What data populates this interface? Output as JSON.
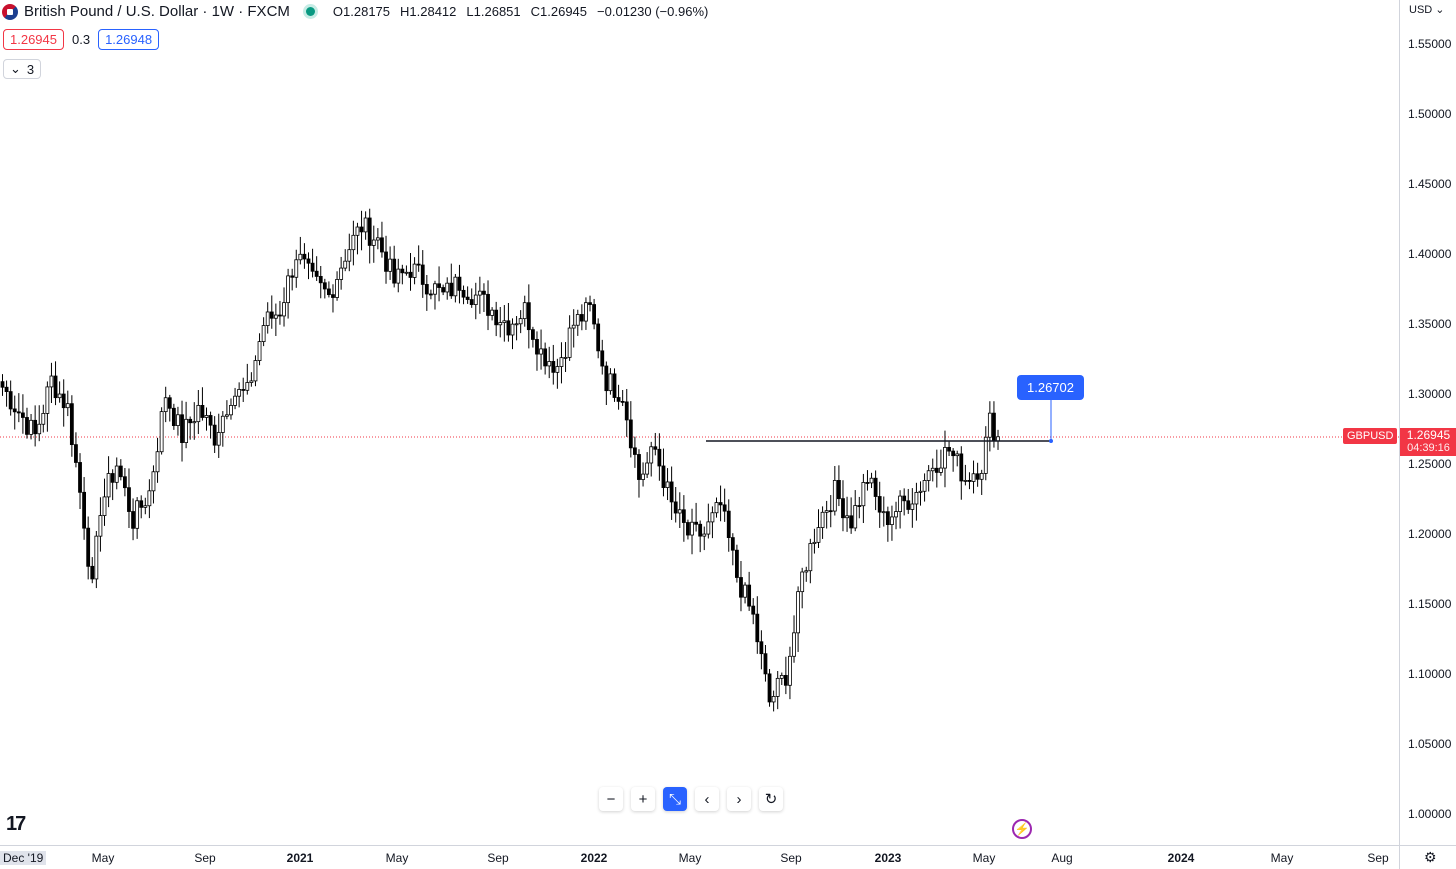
{
  "header": {
    "title": "British Pound / U.S. Dollar · 1W · FXCM",
    "ohlc": {
      "open": "O1.28175",
      "high": "H1.28412",
      "low": "L1.26851",
      "close": "C1.26945",
      "change": "−0.01230 (−0.96%)"
    },
    "sell_price": "1.26945",
    "spread": "0.3",
    "buy_price": "1.26948",
    "indicators_count": "3"
  },
  "price_axis": {
    "currency": "USD",
    "ticks": [
      "1.55000",
      "1.50000",
      "1.45000",
      "1.40000",
      "1.35000",
      "1.30000",
      "1.25000",
      "1.20000",
      "1.15000",
      "1.10000",
      "1.05000",
      "1.00000"
    ],
    "symbol": "GBPUSD",
    "last_price": "1.26945",
    "countdown": "04:39:16"
  },
  "time_axis": {
    "first": "Dec '19",
    "ticks": [
      "May",
      "Sep",
      "2021",
      "May",
      "Sep",
      "2022",
      "May",
      "Sep",
      "2023",
      "May",
      "Aug",
      "2024",
      "May",
      "Sep"
    ]
  },
  "annotation": {
    "label": "1.26702"
  },
  "colors": {
    "up": "#ffffff",
    "down": "#000000",
    "current": "#f23645",
    "accent": "#2962ff"
  },
  "nav_icons": [
    "zoom-out-icon",
    "zoom-in-icon",
    "reset-scale-icon",
    "scroll-left-icon",
    "scroll-right-icon",
    "refresh-icon"
  ],
  "chart_data": {
    "type": "candlestick",
    "interval": "1W",
    "symbol": "GBPUSD",
    "current_price": 1.26945,
    "horizontal_line": 1.26702,
    "ylim": [
      0.98,
      1.56
    ],
    "anchors": [
      [
        0,
        1.305
      ],
      [
        8,
        1.27
      ],
      [
        12,
        1.31
      ],
      [
        16,
        1.29
      ],
      [
        20,
        1.21
      ],
      [
        22,
        1.16
      ],
      [
        24,
        1.22
      ],
      [
        28,
        1.25
      ],
      [
        32,
        1.21
      ],
      [
        36,
        1.23
      ],
      [
        40,
        1.3
      ],
      [
        44,
        1.27
      ],
      [
        48,
        1.29
      ],
      [
        52,
        1.27
      ],
      [
        56,
        1.3
      ],
      [
        60,
        1.3
      ],
      [
        64,
        1.35
      ],
      [
        68,
        1.36
      ],
      [
        72,
        1.4
      ],
      [
        76,
        1.38
      ],
      [
        80,
        1.37
      ],
      [
        84,
        1.4
      ],
      [
        88,
        1.42
      ],
      [
        92,
        1.41
      ],
      [
        96,
        1.38
      ],
      [
        100,
        1.39
      ],
      [
        104,
        1.38
      ],
      [
        108,
        1.37
      ],
      [
        112,
        1.38
      ],
      [
        116,
        1.37
      ],
      [
        120,
        1.36
      ],
      [
        124,
        1.35
      ],
      [
        128,
        1.36
      ],
      [
        132,
        1.33
      ],
      [
        136,
        1.32
      ],
      [
        140,
        1.35
      ],
      [
        144,
        1.36
      ],
      [
        148,
        1.31
      ],
      [
        152,
        1.3
      ],
      [
        156,
        1.24
      ],
      [
        160,
        1.26
      ],
      [
        164,
        1.22
      ],
      [
        168,
        1.2
      ],
      [
        172,
        1.2
      ],
      [
        176,
        1.22
      ],
      [
        180,
        1.17
      ],
      [
        184,
        1.14
      ],
      [
        188,
        1.08
      ],
      [
        192,
        1.1
      ],
      [
        194,
        1.13
      ],
      [
        196,
        1.17
      ],
      [
        200,
        1.21
      ],
      [
        204,
        1.23
      ],
      [
        208,
        1.21
      ],
      [
        212,
        1.24
      ],
      [
        216,
        1.21
      ],
      [
        220,
        1.22
      ],
      [
        224,
        1.23
      ],
      [
        228,
        1.25
      ],
      [
        232,
        1.26
      ],
      [
        236,
        1.24
      ],
      [
        240,
        1.25
      ],
      [
        242,
        1.28
      ],
      [
        244,
        1.27
      ]
    ]
  }
}
